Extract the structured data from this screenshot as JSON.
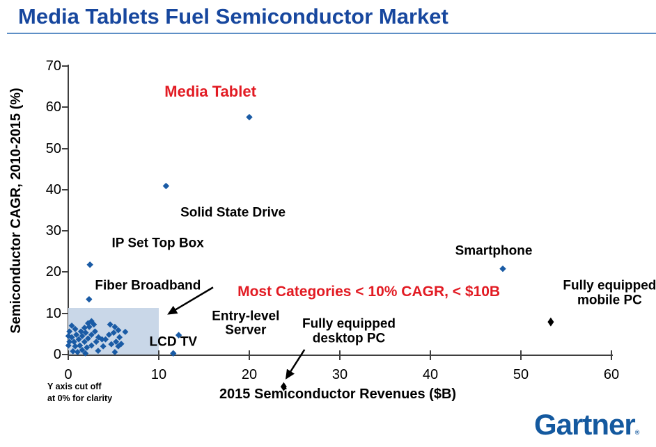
{
  "page": {
    "title": "Media Tablets Fuel Semiconductor Market",
    "axis_note": {
      "line1": "Y axis cut off",
      "line2": "at 0% for clarity"
    },
    "footer_logo": {
      "text": "Gartner",
      "mark": "®"
    }
  },
  "colors": {
    "title_blue": "#17479E",
    "rule_blue": "#5E8FC6",
    "point_blue": "#1A5BA5",
    "point_black": "#000000",
    "annotation_red": "#E21B23",
    "region_fill": "#C9D7E8",
    "axis_gray": "#3F3F3F",
    "gartner_blue": "#14599F"
  },
  "chart_data": {
    "type": "scatter",
    "title": "Media Tablets Fuel Semiconductor Market",
    "xlabel": "2015 Semiconductor Revenues ($B)",
    "ylabel": "Semiconductor CAGR, 2010-2015 (%)",
    "xlim": [
      0,
      60
    ],
    "ylim": [
      0,
      70
    ],
    "xticks": [
      0,
      10,
      20,
      30,
      40,
      50,
      60
    ],
    "yticks": [
      0,
      10,
      20,
      30,
      40,
      50,
      60,
      70
    ],
    "grid": false,
    "legend": "none",
    "highlight_region": {
      "x0": 0,
      "x1": 10,
      "y0": 0,
      "y1": 11.3
    },
    "named_points": [
      {
        "label": "Media Tablet",
        "x": 20,
        "y": 57.6,
        "series": "blue"
      },
      {
        "label": "Solid State Drive",
        "x": 10.8,
        "y": 40.9,
        "series": "blue"
      },
      {
        "label": "IP Set Top Box",
        "x": 2.4,
        "y": 21.8,
        "series": "blue"
      },
      {
        "label": "Fiber Broadband",
        "x": 2.3,
        "y": 13.4,
        "series": "blue"
      },
      {
        "label": "Smartphone",
        "x": 48,
        "y": 20.8,
        "series": "blue"
      },
      {
        "label": "LCD TV",
        "x": 12.2,
        "y": 4.7,
        "series": "blue"
      },
      {
        "label": "LCD TV 2",
        "x": 11.6,
        "y": 0.3,
        "series": "blue"
      },
      {
        "label": "Fully equipped mobile PC",
        "x": 53.3,
        "y": 7.9,
        "series": "black"
      },
      {
        "label": "Fully equipped desktop PC",
        "x": 23.8,
        "y": -7.8,
        "series": "black"
      }
    ],
    "cluster_points": [
      [
        0.39,
        7.0
      ],
      [
        0.77,
        6.2
      ],
      [
        0.13,
        5.6
      ],
      [
        0.02,
        4.5
      ],
      [
        0.39,
        4.2
      ],
      [
        0.9,
        4.8
      ],
      [
        1.41,
        5.6
      ],
      [
        1.8,
        6.5
      ],
      [
        2.19,
        7.6
      ],
      [
        2.57,
        8.1
      ],
      [
        2.83,
        7.3
      ],
      [
        2.32,
        6.7
      ],
      [
        1.93,
        5.3
      ],
      [
        1.54,
        4.5
      ],
      [
        1.16,
        3.7
      ],
      [
        0.64,
        3.1
      ],
      [
        0.13,
        3.1
      ],
      [
        0.02,
        2.2
      ],
      [
        0.77,
        2.0
      ],
      [
        1.29,
        2.2
      ],
      [
        1.8,
        3.1
      ],
      [
        2.19,
        3.9
      ],
      [
        2.57,
        4.8
      ],
      [
        2.96,
        5.6
      ],
      [
        3.34,
        4.2
      ],
      [
        3.73,
        3.7
      ],
      [
        3.09,
        3.1
      ],
      [
        2.57,
        2.2
      ],
      [
        2.06,
        1.7
      ],
      [
        1.54,
        1.1
      ],
      [
        1.03,
        0.6
      ],
      [
        0.52,
        0.8
      ],
      [
        4.63,
        7.3
      ],
      [
        5.15,
        6.7
      ],
      [
        5.53,
        5.9
      ],
      [
        5.02,
        5.3
      ],
      [
        4.5,
        4.8
      ],
      [
        5.66,
        4.2
      ],
      [
        5.28,
        3.1
      ],
      [
        4.76,
        2.5
      ],
      [
        5.53,
        2.0
      ],
      [
        5.15,
        0.6
      ],
      [
        4.12,
        3.7
      ],
      [
        3.86,
        2.0
      ],
      [
        5.85,
        2.6
      ],
      [
        1.9,
        0.3
      ],
      [
        3.3,
        0.9
      ],
      [
        6.3,
        5.5
      ]
    ],
    "point_labels": [
      {
        "name": "media-tablet",
        "text": "Media Tablet",
        "x": 15.7,
        "y": 63.8,
        "class": "red-big"
      },
      {
        "name": "solid-state-drive",
        "text": "Solid State Drive",
        "x": 18.2,
        "y": 34.2
      },
      {
        "name": "ip-set-top-box",
        "text": "IP Set Top Box",
        "x": 9.9,
        "y": 26.8
      },
      {
        "name": "fiber-broadband",
        "text": "Fiber Broadband",
        "x": 8.8,
        "y": 16.5
      },
      {
        "name": "smartphone",
        "text": "Smartphone",
        "x": 47.0,
        "y": 25.0
      },
      {
        "name": "mobile-pc",
        "lines": [
          "Fully equipped",
          "mobile PC"
        ],
        "x": 59.8,
        "y": 14.8
      },
      {
        "name": "entry-level-server",
        "lines": [
          "Entry-level",
          "Server"
        ],
        "x": 19.6,
        "y": 7.5
      },
      {
        "name": "desktop-pc",
        "lines": [
          "Fully equipped",
          "desktop PC"
        ],
        "x": 31.0,
        "y": 5.5
      },
      {
        "name": "lcd-tv",
        "text": "LCD TV",
        "x": 11.6,
        "y": 2.8
      }
    ],
    "annotation": {
      "text": "Most Categories < 10% CAGR, < $10B",
      "x": 33.2,
      "y": 15.2
    },
    "arrows": [
      {
        "name": "annotation-arrow",
        "from": [
          16.0,
          16.3
        ],
        "to": [
          11.1,
          9.9
        ]
      },
      {
        "name": "desktop-pc-arrow",
        "from": [
          26.1,
          1.2
        ],
        "to": [
          24.1,
          -5.7
        ]
      }
    ]
  }
}
